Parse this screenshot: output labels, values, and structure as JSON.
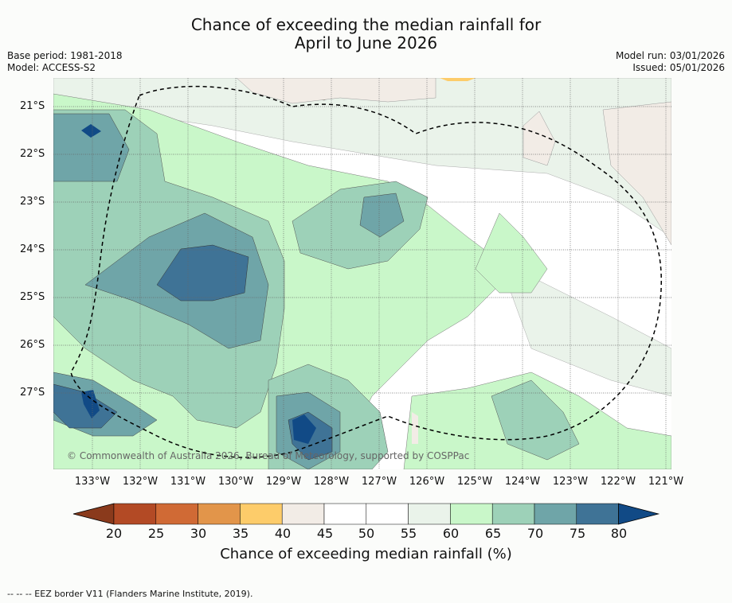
{
  "title": {
    "line1": "Chance of exceeding the median rainfall for",
    "line2": "April to June 2026"
  },
  "meta": {
    "base_period": "Base period: 1981-2018",
    "model": "Model: ACCESS-S2",
    "model_run": "Model run: 03/01/2026",
    "issued": "Issued: 05/01/2026"
  },
  "map": {
    "lat_labels": [
      "21°S",
      "22°S",
      "23°S",
      "24°S",
      "25°S",
      "26°S",
      "27°S"
    ],
    "lon_labels": [
      "133°W",
      "132°W",
      "131°W",
      "130°W",
      "129°W",
      "128°W",
      "127°W",
      "126°W",
      "125°W",
      "124°W",
      "123°W",
      "122°W",
      "121°W"
    ],
    "credit": "© Commonwealth of Australia 2026, Bureau of Meteorology, supported by COSPPac"
  },
  "colorbar": {
    "ticks": [
      "20",
      "25",
      "30",
      "35",
      "40",
      "45",
      "50",
      "55",
      "60",
      "65",
      "70",
      "75",
      "80"
    ],
    "colors": [
      "#8a3a1c",
      "#b34a25",
      "#d06a35",
      "#e2954a",
      "#fdcc6a",
      "#f2ece6",
      "#ffffff",
      "#ffffff",
      "#eaf3ea",
      "#c9f7c9",
      "#9dd1b8",
      "#6fa5a8",
      "#3f7396",
      "#114a86"
    ],
    "label": "Chance of exceeding median rainfall (%)"
  },
  "footer": "--  --  -- EEZ border V11 (Flanders Marine Institute, 2019)."
}
